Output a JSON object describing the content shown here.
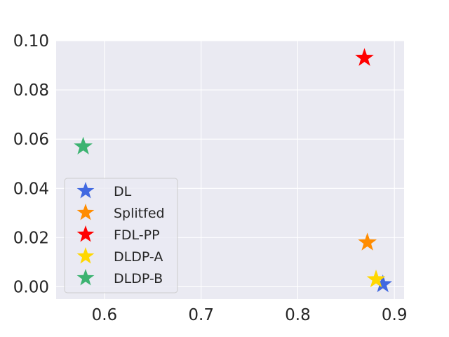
{
  "chart_data": {
    "type": "scatter",
    "title": "",
    "xlabel": "",
    "ylabel": "",
    "xlim": [
      0.55,
      0.91
    ],
    "ylim": [
      -0.005,
      0.1
    ],
    "x_ticks": [
      0.6,
      0.7,
      0.8,
      0.9
    ],
    "y_ticks": [
      0.0,
      0.02,
      0.04,
      0.06,
      0.08,
      0.1
    ],
    "x_tick_labels": [
      "0.6",
      "0.7",
      "0.8",
      "0.9"
    ],
    "y_tick_labels": [
      "0.00",
      "0.02",
      "0.04",
      "0.06",
      "0.08",
      "0.10"
    ],
    "grid": true,
    "legend_position": "lower-left",
    "marker": "star",
    "series": [
      {
        "name": "DL",
        "color": "#4169e1",
        "x": 0.888,
        "y": 0.001
      },
      {
        "name": "Splitfed",
        "color": "#ff8c00",
        "x": 0.872,
        "y": 0.018
      },
      {
        "name": "FDL-PP",
        "color": "#ff0000",
        "x": 0.869,
        "y": 0.093
      },
      {
        "name": "DLDP-A",
        "color": "#ffd700",
        "x": 0.881,
        "y": 0.003
      },
      {
        "name": "DLDP-B",
        "color": "#3cb371",
        "x": 0.578,
        "y": 0.057
      }
    ]
  }
}
